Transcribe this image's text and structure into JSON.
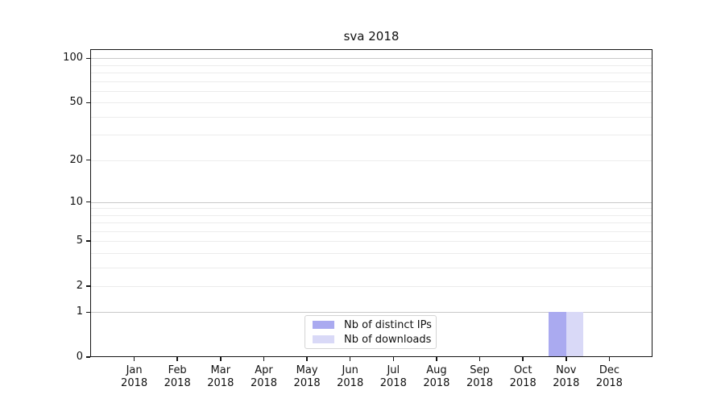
{
  "title": "sva 2018",
  "chart_data": {
    "type": "bar",
    "title": "sva 2018",
    "categories": [
      "Jan",
      "Feb",
      "Mar",
      "Apr",
      "May",
      "Jun",
      "Jul",
      "Aug",
      "Sep",
      "Oct",
      "Nov",
      "Dec"
    ],
    "year": "2018",
    "series": [
      {
        "name": "Nb of distinct IPs",
        "color": "#aaaaf0",
        "values": [
          0,
          0,
          0,
          0,
          0,
          0,
          0,
          0,
          0,
          0,
          1,
          0
        ]
      },
      {
        "name": "Nb of downloads",
        "color": "#d9d9f7",
        "values": [
          0,
          0,
          0,
          0,
          0,
          0,
          0,
          0,
          0,
          0,
          1,
          0
        ]
      }
    ],
    "y_ticks": [
      0,
      1,
      2,
      5,
      10,
      20,
      50,
      100
    ],
    "y_scale": "log10(value+1)",
    "ylim": [
      0,
      114
    ],
    "xlabel": "",
    "ylabel": "",
    "grid": "horizontal",
    "legend_position": "lower center",
    "colors": {
      "major_grid": "#c9c9c9",
      "minor_grid": "#ececec",
      "spine": "#151515"
    }
  }
}
